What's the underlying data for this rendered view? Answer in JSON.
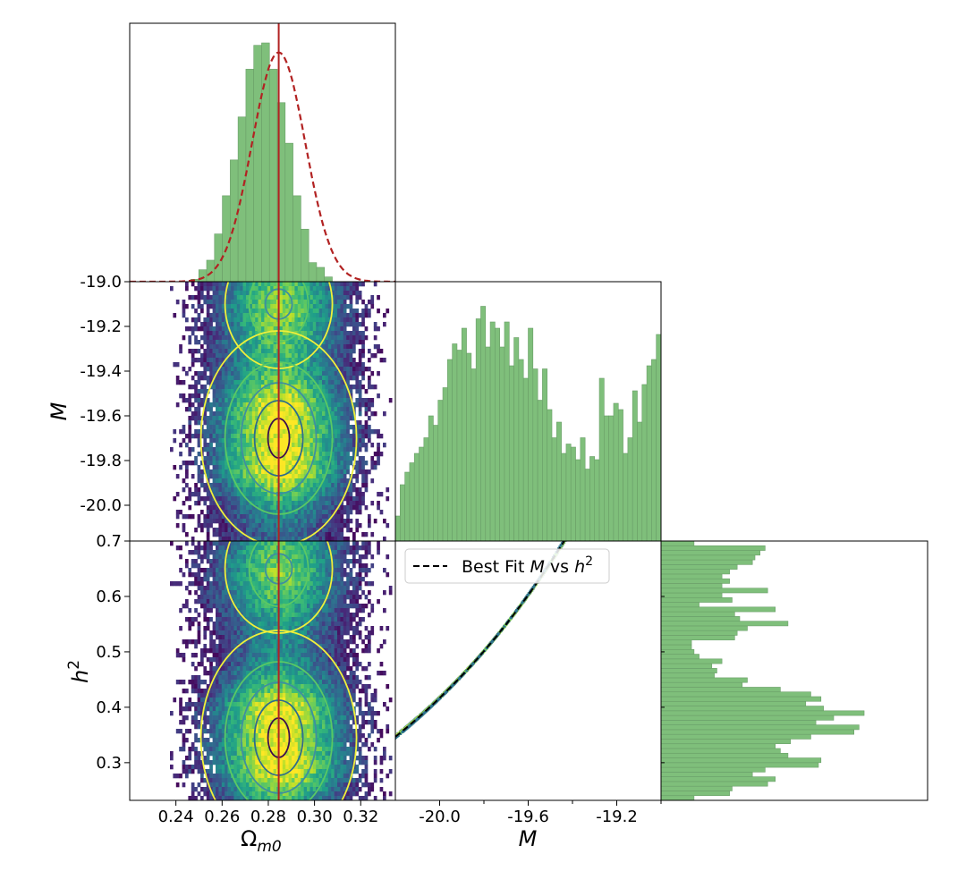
{
  "chart_data": [
    {
      "panel": "omega-histogram",
      "type": "bar",
      "x_range": [
        0.22,
        0.335
      ],
      "bin_edges_start": 0.2465,
      "bin_width": 0.0034,
      "values": [
        0.01,
        0.05,
        0.09,
        0.2,
        0.36,
        0.51,
        0.69,
        0.89,
        0.99,
        1.0,
        0.89,
        0.75,
        0.58,
        0.36,
        0.22,
        0.08,
        0.06,
        0.02
      ],
      "best_fit": {
        "type": "gaussian",
        "mean": 0.2845,
        "sigma": 0.0115,
        "peak": 0.96,
        "style": "dashed",
        "color": "#b22222"
      },
      "marker_line": {
        "x": 0.2845,
        "color": "#b22222"
      },
      "bar_color": "#7fbf7b"
    },
    {
      "panel": "omega-vs-M",
      "type": "heatmap",
      "x_range": [
        0.22,
        0.335
      ],
      "y_range": [
        -20.16,
        -19.0
      ],
      "yticks": [
        "-19.0",
        "-19.2",
        "-19.4",
        "-19.6",
        "-19.8",
        "-20.0"
      ],
      "ylabel": "M",
      "center": {
        "x": 0.2845,
        "y": -19.7
      },
      "bands": [
        {
          "y": -19.1,
          "level": 0.55
        },
        {
          "y": -19.7,
          "level": 1.0
        }
      ]
    },
    {
      "panel": "M-histogram",
      "type": "bar",
      "x_range": [
        -20.2,
        -19.0
      ],
      "values": [
        0.08,
        0.18,
        0.22,
        0.25,
        0.28,
        0.3,
        0.33,
        0.4,
        0.37,
        0.45,
        0.49,
        0.58,
        0.63,
        0.61,
        0.68,
        0.6,
        0.55,
        0.71,
        0.75,
        0.62,
        0.7,
        0.68,
        0.62,
        0.7,
        0.56,
        0.65,
        0.58,
        0.52,
        0.68,
        0.55,
        0.45,
        0.55,
        0.42,
        0.33,
        0.38,
        0.28,
        0.31,
        0.3,
        0.26,
        0.33,
        0.23,
        0.27,
        0.26,
        0.52,
        0.4,
        0.4,
        0.44,
        0.42,
        0.28,
        0.33,
        0.48,
        0.38,
        0.5,
        0.56,
        0.58,
        0.66
      ],
      "bar_color": "#7fbf7b"
    },
    {
      "panel": "omega-vs-h2",
      "type": "heatmap",
      "x_range": [
        0.22,
        0.335
      ],
      "y_range": [
        0.232,
        0.7
      ],
      "xticks": [
        "0.24",
        "0.26",
        "0.28",
        "0.30",
        "0.32"
      ],
      "yticks": [
        "0.7",
        "0.6",
        "0.5",
        "0.4",
        "0.3"
      ],
      "xlabel": "Ω",
      "xlabel_sub": "m0",
      "ylabel": "h",
      "ylabel_sup": "2",
      "center": {
        "x": 0.2845,
        "y": 0.345
      },
      "bands": [
        {
          "y": 0.65,
          "level": 0.55
        },
        {
          "y": 0.345,
          "level": 1.0
        }
      ]
    },
    {
      "panel": "M-vs-h2",
      "type": "line",
      "x_range": [
        -20.2,
        -19.0
      ],
      "y_range": [
        0.232,
        0.7
      ],
      "xticks": [
        "-20.0",
        "-19.6",
        "-19.2"
      ],
      "xlabel": "M",
      "legend": {
        "text": "Best Fit ",
        "var": "M",
        "mid": " vs ",
        "var2": "h",
        "sup": "2",
        "placement": "upper-left"
      },
      "curve": {
        "form": "h2 = 10^(0.4*(M + 19.05))",
        "x_start": -20.2,
        "x_end": -19.0,
        "style": "dashed",
        "color": "#000000"
      }
    },
    {
      "panel": "h2-histogram",
      "type": "bar",
      "orientation": "horizontal",
      "y_range": [
        0.232,
        0.7
      ],
      "values": [
        0.13,
        0.27,
        0.28,
        0.42,
        0.45,
        0.36,
        0.41,
        0.62,
        0.63,
        0.5,
        0.47,
        0.45,
        0.51,
        0.59,
        0.76,
        0.78,
        0.61,
        0.68,
        0.8,
        0.64,
        0.57,
        0.63,
        0.59,
        0.47,
        0.32,
        0.34,
        0.21,
        0.22,
        0.2,
        0.24,
        0.15,
        0.13,
        0.12,
        0.12,
        0.29,
        0.3,
        0.34,
        0.5,
        0.31,
        0.29,
        0.45,
        0.15,
        0.28,
        0.24,
        0.42,
        0.24,
        0.27,
        0.24,
        0.27,
        0.3,
        0.36,
        0.37,
        0.39,
        0.41,
        0.13
      ],
      "bar_color": "#7fbf7b"
    }
  ]
}
